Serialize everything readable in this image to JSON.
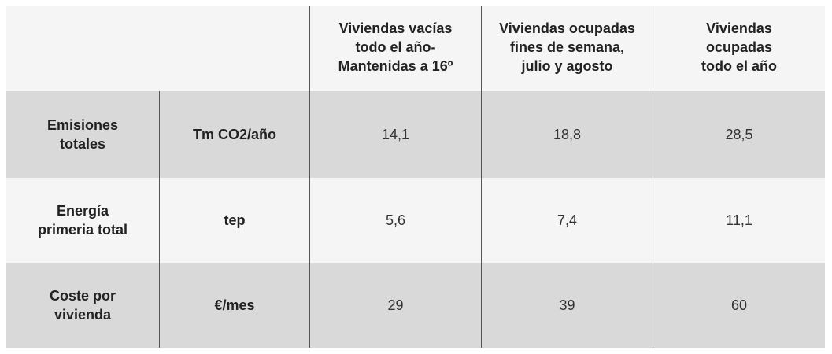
{
  "table": {
    "headers": [
      "Viviendas vacías\ntodo el año-\nMantenidas a 16º",
      "Viviendas ocupadas\nfines de semana,\njulio y agosto",
      "Viviendas\nocupadas\ntodo el año"
    ],
    "rows": [
      {
        "label": "Emisiones\ntotales",
        "unit": "Tm CO2/año",
        "values": [
          "14,1",
          "18,8",
          "28,5"
        ]
      },
      {
        "label": "Energía\nprimeria total",
        "unit": "tep",
        "values": [
          "5,6",
          "7,4",
          "11,1"
        ]
      },
      {
        "label": "Coste por\nvivienda",
        "unit": "€/mes",
        "values": [
          "29",
          "39",
          "60"
        ]
      }
    ]
  },
  "colors": {
    "header_background": "#f5f5f5",
    "shaded_row": "#d9d9d9",
    "light_row": "#f5f5f5",
    "divider": "#555555"
  }
}
